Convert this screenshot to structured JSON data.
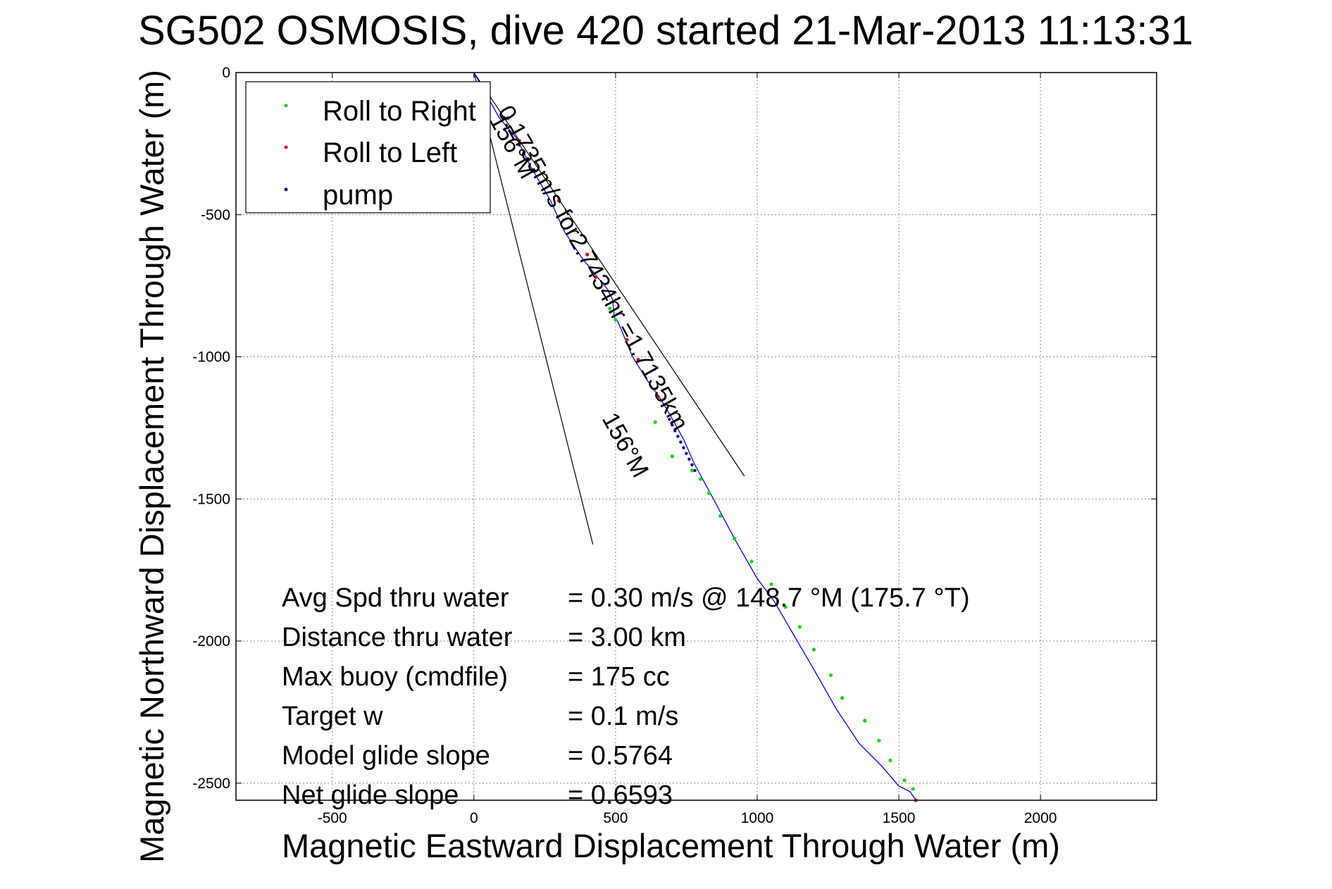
{
  "chart_data": {
    "type": "line",
    "title": "SG502 OSMOSIS, dive 420 started 21-Mar-2013 11:13:31",
    "xlabel": "Magnetic Eastward Displacement Through Water (m)",
    "ylabel": "Magnetic Northward Displacement Through Water (m)",
    "xlim": [
      -840,
      2410
    ],
    "ylim": [
      -2560,
      0
    ],
    "x_ticks": [
      -500,
      0,
      500,
      1000,
      1500,
      2000
    ],
    "y_ticks": [
      0,
      -500,
      -1000,
      -1500,
      -2000,
      -2500
    ],
    "grid": true,
    "legend": {
      "position": "top-left",
      "entries": [
        {
          "label": "Roll to Right",
          "color": "#00dd00"
        },
        {
          "label": "Roll to Left",
          "color": "#dd0000"
        },
        {
          "label": "pump",
          "color": "#000080"
        }
      ]
    },
    "track": {
      "color": "#0000ff",
      "x": [
        0,
        40,
        90,
        150,
        200,
        270,
        320,
        380,
        420,
        470,
        490,
        495,
        510,
        560,
        610,
        660,
        690,
        740,
        780,
        840,
        920,
        1000,
        1060,
        1130,
        1200,
        1280,
        1360,
        1440,
        1500,
        1540,
        1560
      ],
      "y": [
        0,
        -70,
        -160,
        -230,
        -330,
        -450,
        -560,
        -650,
        -700,
        -760,
        -800,
        -860,
        -880,
        -1000,
        -1080,
        -1150,
        -1200,
        -1290,
        -1380,
        -1490,
        -1640,
        -1780,
        -1860,
        -1980,
        -2100,
        -2240,
        -2360,
        -2440,
        -2510,
        -2530,
        -2570
      ]
    },
    "roll_right_points": {
      "x": [
        480,
        500,
        640,
        700,
        770,
        800,
        830,
        870,
        920,
        980,
        1050,
        1100,
        1150,
        1200,
        1260,
        1300,
        1380,
        1430,
        1470,
        1520,
        1550
      ],
      "y": [
        -830,
        -870,
        -1230,
        -1350,
        -1400,
        -1430,
        -1480,
        -1560,
        -1640,
        -1720,
        -1800,
        -1880,
        -1950,
        -2030,
        -2120,
        -2200,
        -2280,
        -2350,
        -2420,
        -2490,
        -2520
      ]
    },
    "roll_left_points": {
      "x": [
        50,
        120,
        160,
        300,
        400,
        430,
        540,
        580,
        650,
        1560
      ],
      "y": [
        -70,
        -160,
        -240,
        -450,
        -640,
        -720,
        -940,
        -1010,
        -1140,
        -2560
      ]
    },
    "pump_points": {
      "x": [
        690,
        700,
        710,
        720,
        730,
        740,
        750,
        760,
        770,
        780
      ],
      "y": [
        -1220,
        -1240,
        -1260,
        -1280,
        -1300,
        -1320,
        -1340,
        -1360,
        -1380,
        -1400
      ]
    },
    "heading_lines": [
      {
        "x": [
          0,
          420
        ],
        "y": [
          0,
          -1660
        ]
      },
      {
        "x": [
          0,
          955
        ],
        "y": [
          0,
          -1420
        ]
      }
    ],
    "annotations": {
      "heading_a": "156°M",
      "heading_b": "156°M",
      "speed": "0.1735m/s for2.7434hr =1.7135km"
    },
    "stats": [
      {
        "label": "Avg Spd thru water",
        "value": "=  0.30 m/s @ 148.7 °M (175.7 °T)"
      },
      {
        "label": "Distance thru water",
        "value": "=  3.00 km"
      },
      {
        "label": "Max buoy (cmdfile)",
        "value": "= 175 cc"
      },
      {
        "label": "Target w",
        "value": "= 0.1 m/s"
      },
      {
        "label": "Model glide slope",
        "value": "= 0.5764"
      },
      {
        "label": "Net glide slope",
        "value": "= 0.6593"
      }
    ]
  }
}
